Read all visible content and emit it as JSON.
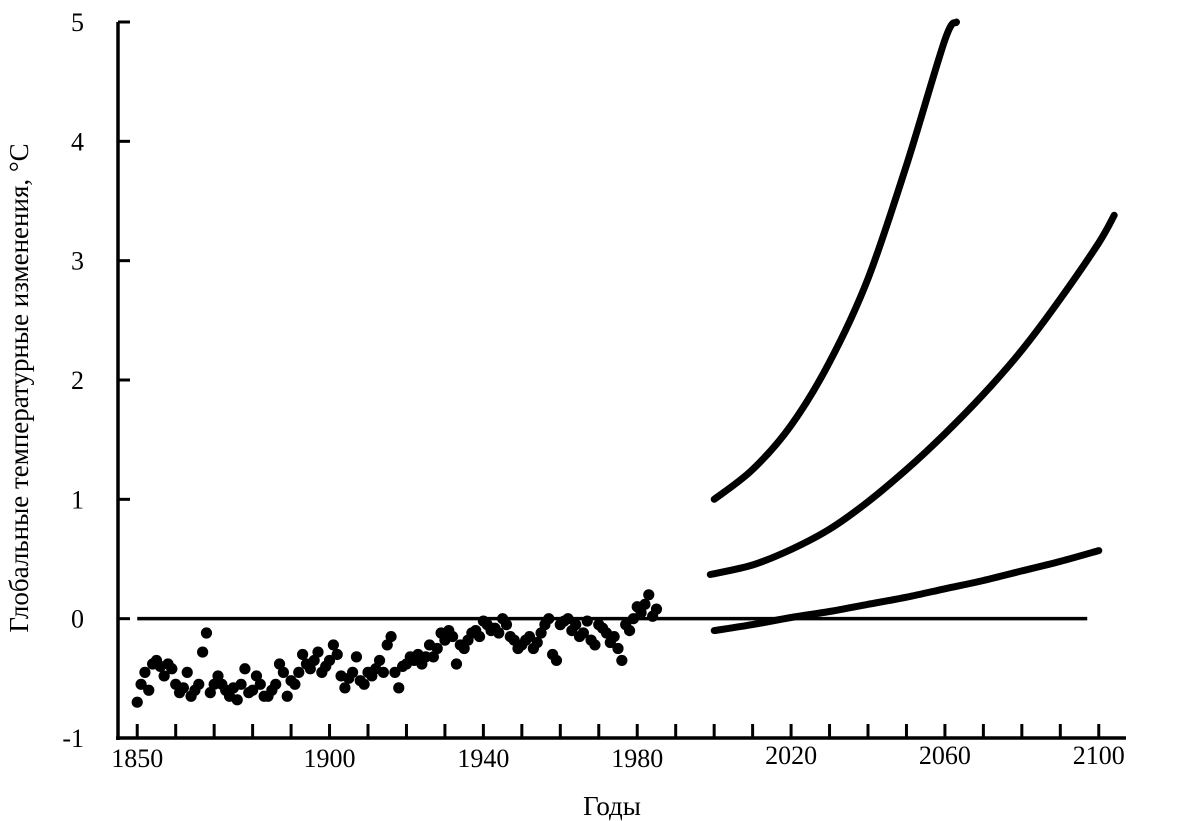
{
  "chart_data": {
    "type": "scatter",
    "title": "",
    "xlabel": "Годы",
    "ylabel": "Глобальные температурные изменения, °С",
    "xlim": [
      1845,
      2105
    ],
    "ylim": [
      -1,
      5
    ],
    "x_ticks_bottom": [
      1850,
      1900,
      1940,
      1980
    ],
    "x_ticks_top": [
      2020,
      2060,
      2100
    ],
    "y_ticks": [
      -1,
      0,
      1,
      2,
      3,
      4,
      5
    ],
    "grid": false,
    "legend": "none",
    "reference_line": {
      "name": "",
      "y": 0,
      "x_range": [
        1850,
        2097
      ]
    },
    "series": [
      {
        "name": "",
        "kind": "scatter",
        "x": [
          1850,
          1851,
          1852,
          1853,
          1854,
          1855,
          1856,
          1857,
          1858,
          1859,
          1860,
          1861,
          1862,
          1863,
          1864,
          1865,
          1866,
          1867,
          1868,
          1869,
          1870,
          1871,
          1872,
          1873,
          1874,
          1875,
          1876,
          1877,
          1878,
          1879,
          1880,
          1881,
          1882,
          1883,
          1884,
          1885,
          1886,
          1887,
          1888,
          1889,
          1890,
          1891,
          1892,
          1893,
          1894,
          1895,
          1896,
          1897,
          1898,
          1899,
          1900,
          1901,
          1902,
          1903,
          1904,
          1905,
          1906,
          1907,
          1908,
          1909,
          1910,
          1911,
          1912,
          1913,
          1914,
          1915,
          1916,
          1917,
          1918,
          1919,
          1920,
          1921,
          1922,
          1923,
          1924,
          1925,
          1926,
          1927,
          1928,
          1929,
          1930,
          1931,
          1932,
          1933,
          1934,
          1935,
          1936,
          1937,
          1938,
          1939,
          1940,
          1941,
          1942,
          1943,
          1944,
          1945,
          1946,
          1947,
          1948,
          1949,
          1950,
          1951,
          1952,
          1953,
          1954,
          1955,
          1956,
          1957,
          1958,
          1959,
          1960,
          1961,
          1962,
          1963,
          1964,
          1965,
          1966,
          1967,
          1968,
          1969,
          1970,
          1971,
          1972,
          1973,
          1974,
          1975,
          1976,
          1977,
          1978,
          1979,
          1980,
          1981,
          1982,
          1983,
          1984,
          1985
        ],
        "values": [
          -0.7,
          -0.55,
          -0.45,
          -0.6,
          -0.38,
          -0.35,
          -0.4,
          -0.48,
          -0.38,
          -0.42,
          -0.55,
          -0.62,
          -0.58,
          -0.45,
          -0.65,
          -0.6,
          -0.55,
          -0.28,
          -0.12,
          -0.62,
          -0.55,
          -0.48,
          -0.55,
          -0.6,
          -0.65,
          -0.58,
          -0.68,
          -0.55,
          -0.42,
          -0.62,
          -0.6,
          -0.48,
          -0.55,
          -0.65,
          -0.65,
          -0.6,
          -0.55,
          -0.38,
          -0.45,
          -0.65,
          -0.52,
          -0.55,
          -0.45,
          -0.3,
          -0.38,
          -0.42,
          -0.35,
          -0.28,
          -0.45,
          -0.4,
          -0.35,
          -0.22,
          -0.3,
          -0.48,
          -0.58,
          -0.5,
          -0.45,
          -0.32,
          -0.52,
          -0.55,
          -0.45,
          -0.48,
          -0.42,
          -0.35,
          -0.45,
          -0.22,
          -0.15,
          -0.45,
          -0.58,
          -0.4,
          -0.38,
          -0.32,
          -0.35,
          -0.3,
          -0.38,
          -0.32,
          -0.22,
          -0.32,
          -0.25,
          -0.12,
          -0.18,
          -0.1,
          -0.15,
          -0.38,
          -0.22,
          -0.25,
          -0.18,
          -0.12,
          -0.1,
          -0.15,
          -0.02,
          -0.05,
          -0.1,
          -0.08,
          -0.12,
          0.0,
          -0.05,
          -0.15,
          -0.18,
          -0.25,
          -0.22,
          -0.18,
          -0.15,
          -0.25,
          -0.2,
          -0.12,
          -0.05,
          0.0,
          -0.3,
          -0.35,
          -0.05,
          -0.02,
          0.0,
          -0.1,
          -0.05,
          -0.15,
          -0.12,
          -0.02,
          -0.18,
          -0.22,
          -0.05,
          -0.08,
          -0.12,
          -0.2,
          -0.15,
          -0.25,
          -0.35,
          -0.05,
          -0.1,
          0.0,
          0.1,
          0.05,
          0.12,
          0.2,
          0.02,
          0.08
        ]
      },
      {
        "name": "",
        "kind": "line",
        "x": [
          2000,
          2010,
          2020,
          2030,
          2040,
          2050,
          2060,
          2063
        ],
        "values": [
          1.0,
          1.25,
          1.62,
          2.15,
          2.85,
          3.8,
          4.85,
          5.0
        ]
      },
      {
        "name": "",
        "kind": "line",
        "x": [
          1999,
          2010,
          2020,
          2030,
          2040,
          2050,
          2060,
          2070,
          2080,
          2090,
          2100,
          2104
        ],
        "values": [
          0.37,
          0.45,
          0.58,
          0.75,
          0.98,
          1.25,
          1.55,
          1.88,
          2.25,
          2.68,
          3.15,
          3.38
        ]
      },
      {
        "name": "",
        "kind": "line",
        "x": [
          2000,
          2010,
          2020,
          2030,
          2040,
          2050,
          2060,
          2070,
          2080,
          2090,
          2100
        ],
        "values": [
          -0.1,
          -0.05,
          0.01,
          0.06,
          0.12,
          0.18,
          0.25,
          0.32,
          0.4,
          0.48,
          0.57
        ]
      }
    ]
  }
}
